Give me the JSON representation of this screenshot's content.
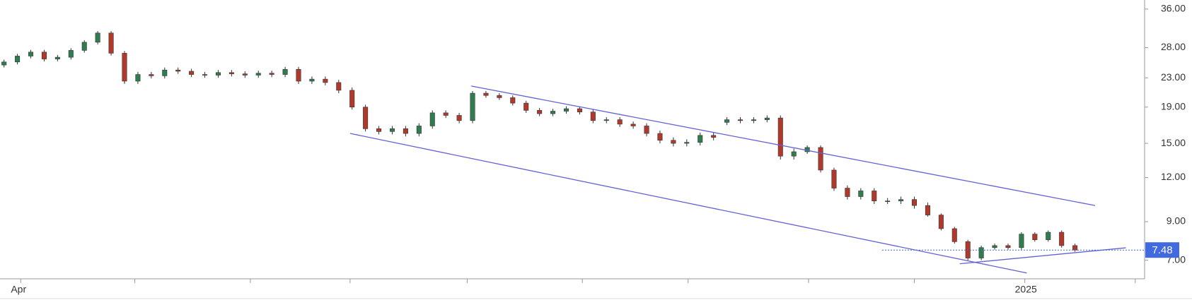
{
  "chart_data": {
    "type": "candlestick",
    "log_scale": true,
    "grid": false,
    "up_color": "#2e7d4f",
    "down_color": "#b0392c",
    "wick_color": "#333333",
    "trendline_color": "#6262d4",
    "price_line_color": "#4169e1",
    "open": [
      25.0,
      25.5,
      26.5,
      27.2,
      26.0,
      26.3,
      27.5,
      29.0,
      30.8,
      27.0,
      22.5,
      23.5,
      23.3,
      24.2,
      24.0,
      23.5,
      23.4,
      23.8,
      23.6,
      23.4,
      23.7,
      23.5,
      24.3,
      22.5,
      22.8,
      22.3,
      21.2,
      19.0,
      16.5,
      16.2,
      16.5,
      16.0,
      16.8,
      18.3,
      18.0,
      17.4,
      20.8,
      20.5,
      20.2,
      19.5,
      18.6,
      18.2,
      18.5,
      18.8,
      18.4,
      17.4,
      17.5,
      17.0,
      16.8,
      16.0,
      15.3,
      15.0,
      15.1,
      15.8,
      17.2,
      17.5,
      17.4,
      17.5,
      17.7,
      13.8,
      14.2,
      14.6,
      12.6,
      11.2,
      10.6,
      11.0,
      10.3,
      10.3,
      10.4,
      10.0,
      9.4,
      8.6,
      7.9,
      7.1,
      7.6,
      7.7,
      7.6,
      8.3,
      8.0,
      8.4,
      7.7
    ],
    "high": [
      25.9,
      26.9,
      27.6,
      27.6,
      26.7,
      27.9,
      29.4,
      31.2,
      31.2,
      27.4,
      23.9,
      23.9,
      24.6,
      24.6,
      24.4,
      23.9,
      24.2,
      24.2,
      24.0,
      24.1,
      24.1,
      24.7,
      24.7,
      23.2,
      23.2,
      22.7,
      21.6,
      19.3,
      16.8,
      16.8,
      16.8,
      17.1,
      18.6,
      18.6,
      18.3,
      21.1,
      21.1,
      20.8,
      20.5,
      19.8,
      18.9,
      18.8,
      19.1,
      19.1,
      18.7,
      17.8,
      17.8,
      17.3,
      17.1,
      16.3,
      15.6,
      15.4,
      16.1,
      16.1,
      17.8,
      17.8,
      17.8,
      18.0,
      18.0,
      14.5,
      14.8,
      14.8,
      12.8,
      11.4,
      11.2,
      11.2,
      10.5,
      10.6,
      10.6,
      10.2,
      9.5,
      8.7,
      8.0,
      7.7,
      7.8,
      7.8,
      8.4,
      8.4,
      8.5,
      8.5,
      7.8
    ],
    "low": [
      24.6,
      25.1,
      26.1,
      25.6,
      25.6,
      25.9,
      27.1,
      28.6,
      26.6,
      22.1,
      22.1,
      22.9,
      22.9,
      23.6,
      23.1,
      23.0,
      23.0,
      23.2,
      23.0,
      23.0,
      23.1,
      23.1,
      22.1,
      22.1,
      21.9,
      20.8,
      18.7,
      16.2,
      15.9,
      15.9,
      15.7,
      15.7,
      16.5,
      17.7,
      17.1,
      17.1,
      20.2,
      19.9,
      19.2,
      18.3,
      17.9,
      17.9,
      18.2,
      18.1,
      17.1,
      17.1,
      16.7,
      16.5,
      15.7,
      15.0,
      14.7,
      14.7,
      14.8,
      15.3,
      16.9,
      17.1,
      17.1,
      17.2,
      13.5,
      13.5,
      14.0,
      12.4,
      11.0,
      10.4,
      10.4,
      10.1,
      10.1,
      10.1,
      9.8,
      9.3,
      8.5,
      7.8,
      7.0,
      7.0,
      7.5,
      7.5,
      7.5,
      7.9,
      7.9,
      7.6,
      7.4
    ],
    "close": [
      25.5,
      26.5,
      27.2,
      26.0,
      26.3,
      27.5,
      29.0,
      30.8,
      27.0,
      22.5,
      23.5,
      23.3,
      24.2,
      24.0,
      23.5,
      23.4,
      23.8,
      23.6,
      23.4,
      23.7,
      23.5,
      24.3,
      22.5,
      22.8,
      22.3,
      21.2,
      19.0,
      16.5,
      16.2,
      16.5,
      16.0,
      16.8,
      18.3,
      18.0,
      17.4,
      20.8,
      20.5,
      20.2,
      19.5,
      18.6,
      18.2,
      18.5,
      18.8,
      18.4,
      17.4,
      17.5,
      17.0,
      16.8,
      16.0,
      15.3,
      15.0,
      15.1,
      15.8,
      15.6,
      17.5,
      17.4,
      17.5,
      17.7,
      13.8,
      14.2,
      14.6,
      12.6,
      11.2,
      10.6,
      11.0,
      10.3,
      10.3,
      10.4,
      10.0,
      9.4,
      8.6,
      7.9,
      7.1,
      7.6,
      7.7,
      7.6,
      8.3,
      8.0,
      8.4,
      7.7,
      7.48
    ],
    "xlim": [
      -0.3,
      85.2
    ],
    "xticks": [
      {
        "value": 1.25,
        "label": "Apr"
      },
      {
        "value": 9.77,
        "label": null
      },
      {
        "value": 18.4,
        "label": null
      },
      {
        "value": 25.85,
        "label": null
      },
      {
        "value": 34.6,
        "label": null
      },
      {
        "value": 43.2,
        "label": null
      },
      {
        "value": 51.1,
        "label": null
      },
      {
        "value": 60.1,
        "label": null
      },
      {
        "value": 68.0,
        "label": null
      },
      {
        "value": 76.25,
        "label": "2025"
      },
      {
        "value": 84.5,
        "label": null
      }
    ],
    "ylim": [
      6.2,
      38.2
    ],
    "yticks": [
      {
        "value": 36,
        "label": "36.00"
      },
      {
        "value": 28,
        "label": "28.00"
      },
      {
        "value": 23,
        "label": "23.00"
      },
      {
        "value": 19,
        "label": "19.00"
      },
      {
        "value": 15,
        "label": "15.00"
      },
      {
        "value": 12,
        "label": "12.00"
      },
      {
        "value": 9,
        "label": "9.00"
      },
      {
        "value": 7,
        "label": "7.00"
      }
    ],
    "trendlines": [
      {
        "x": [
          34.9,
          81.5
        ],
        "y": [
          21.8,
          10.0
        ]
      },
      {
        "x": [
          25.85,
          76.4
        ],
        "y": [
          16.0,
          6.44
        ]
      },
      {
        "x": [
          71.4,
          83.8
        ],
        "y": [
          6.84,
          7.59
        ]
      }
    ]
  }
}
